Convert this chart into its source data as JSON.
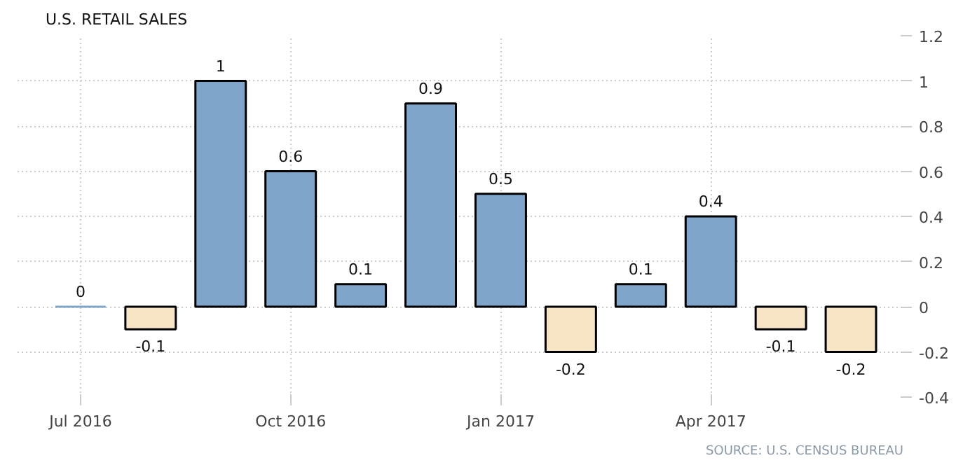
{
  "chart_data": {
    "type": "bar",
    "title": "U.S. RETAIL SALES",
    "categories": [
      "Jul 2016",
      null,
      null,
      "Oct 2016",
      null,
      null,
      "Jan 2017",
      null,
      null,
      "Apr 2017",
      null,
      null
    ],
    "values": [
      0,
      -0.1,
      1,
      0.6,
      0.1,
      0.9,
      0.5,
      -0.2,
      0.1,
      0.4,
      -0.1,
      -0.2
    ],
    "colors": [
      "#7fa6ca",
      "#f8e5c6",
      "#7fa6ca",
      "#7fa6ca",
      "#7fa6ca",
      "#7fa6ca",
      "#7fa6ca",
      "#f8e5c6",
      "#7fa6ca",
      "#7fa6ca",
      "#f8e5c6",
      "#f8e5c6"
    ],
    "ylim": [
      -0.4,
      1.2
    ],
    "yticks": [
      -0.4,
      -0.2,
      0,
      0.2,
      0.4,
      0.6,
      0.8,
      1,
      1.2
    ],
    "grid": true,
    "data_labels": true,
    "annotations": [
      "SOURCE: U.S. CENSUS BUREAU"
    ]
  }
}
